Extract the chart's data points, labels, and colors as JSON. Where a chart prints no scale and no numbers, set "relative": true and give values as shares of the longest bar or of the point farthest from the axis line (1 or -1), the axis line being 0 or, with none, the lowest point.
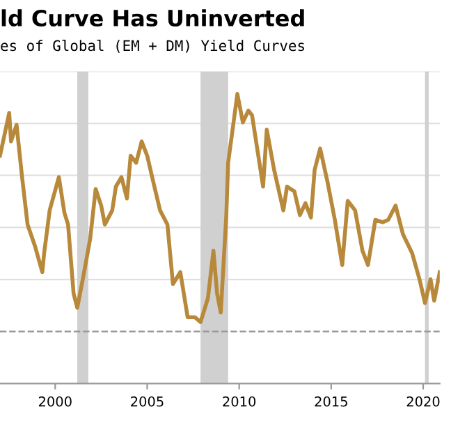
{
  "chart_data": {
    "type": "line",
    "title": "ld Curve Has Uninverted",
    "subtitle": "es of Global (EM + DM) Yield Curves",
    "relative": true,
    "x": [
      1997.0,
      1997.5,
      1997.6,
      1997.9,
      1998.2,
      1998.5,
      1998.9,
      1999.3,
      1999.4,
      1999.7,
      2000.2,
      2000.5,
      2000.7,
      2001.0,
      2001.2,
      2001.5,
      2001.9,
      2002.2,
      2002.5,
      2002.7,
      2003.1,
      2003.3,
      2003.6,
      2003.9,
      2004.1,
      2004.4,
      2004.7,
      2005.0,
      2005.3,
      2005.7,
      2006.1,
      2006.4,
      2006.8,
      2007.2,
      2007.6,
      2007.9,
      2008.3,
      2008.6,
      2008.8,
      2009.0,
      2009.3,
      2009.4,
      2009.9,
      2010.2,
      2010.5,
      2010.7,
      2011.3,
      2011.5,
      2011.9,
      2012.4,
      2012.6,
      2013.0,
      2013.3,
      2013.6,
      2013.9,
      2014.1,
      2014.4,
      2014.8,
      2015.2,
      2015.6,
      2015.9,
      2016.3,
      2016.7,
      2017.0,
      2017.4,
      2017.8,
      2018.1,
      2018.5,
      2018.9,
      2019.4,
      2019.8,
      2020.1,
      2020.4,
      2020.6,
      2020.9
    ],
    "series": [
      {
        "color": "#b8893a",
        "values": [
          0.74,
          0.92,
          0.8,
          0.87,
          0.65,
          0.45,
          0.36,
          0.25,
          0.33,
          0.51,
          0.65,
          0.5,
          0.45,
          0.16,
          0.1,
          0.22,
          0.39,
          0.6,
          0.53,
          0.45,
          0.51,
          0.61,
          0.65,
          0.56,
          0.74,
          0.71,
          0.8,
          0.74,
          0.64,
          0.51,
          0.45,
          0.2,
          0.25,
          0.06,
          0.06,
          0.04,
          0.14,
          0.34,
          0.16,
          0.08,
          0.49,
          0.71,
          1.0,
          0.88,
          0.93,
          0.91,
          0.61,
          0.85,
          0.68,
          0.51,
          0.61,
          0.59,
          0.49,
          0.54,
          0.48,
          0.68,
          0.77,
          0.63,
          0.47,
          0.28,
          0.55,
          0.51,
          0.34,
          0.28,
          0.47,
          0.46,
          0.47,
          0.53,
          0.41,
          0.33,
          0.22,
          0.12,
          0.22,
          0.13,
          0.25
        ]
      }
    ],
    "xlim": [
      1997.0,
      2020.9
    ],
    "xticks": [
      2000,
      2005,
      2010,
      2015,
      2020
    ],
    "grid": "y",
    "tick_labels": "x",
    "ref_lines": [
      {
        "axis": "y",
        "value": 0,
        "line_style": "dashed",
        "color": "#999999"
      }
    ],
    "bands": [
      {
        "axis": "x",
        "from": 2001.2,
        "to": 2001.8,
        "color": "#d0d0d0"
      },
      {
        "axis": "x",
        "from": 2007.9,
        "to": 2009.4,
        "color": "#d0d0d0"
      },
      {
        "axis": "x",
        "from": 2020.1,
        "to": 2020.3,
        "color": "#d0d0d0"
      }
    ]
  }
}
